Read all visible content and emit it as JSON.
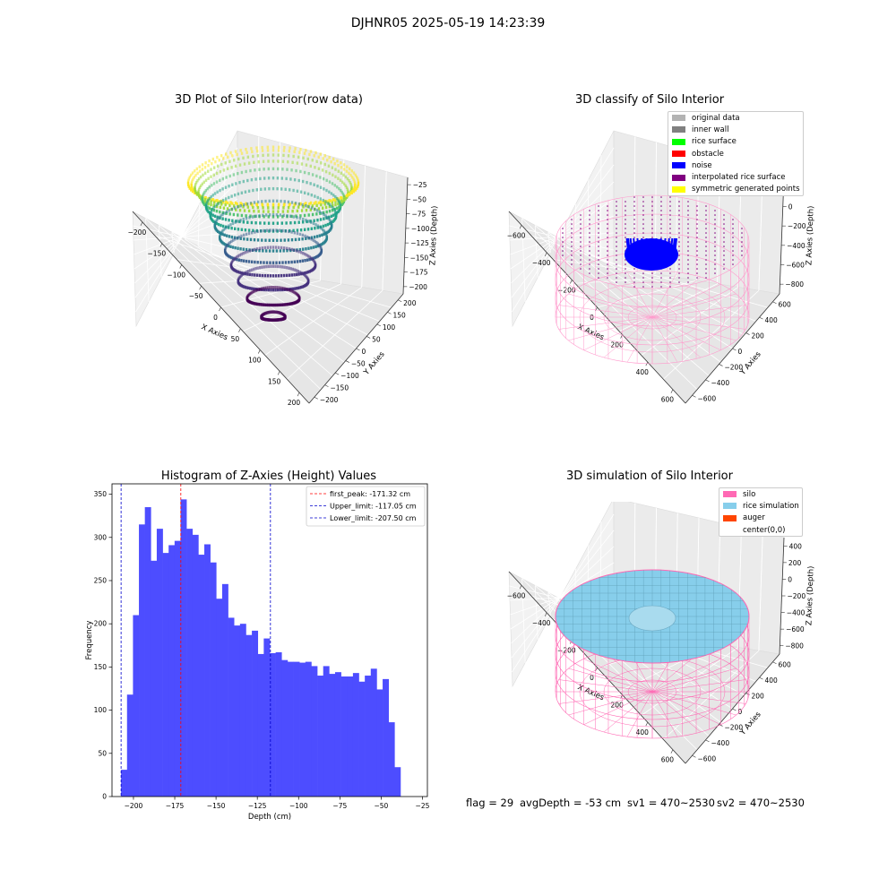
{
  "suptitle": "DJHNR05 2025-05-19 14:23:39",
  "panels": {
    "raw": {
      "title": "3D Plot of Silo Interior(row data)",
      "xlabel": "X Axies",
      "ylabel": "Y Axies",
      "zlabel": "Z Axies (Depth)",
      "xticks": [
        "−200",
        "−150",
        "−100",
        "−50",
        "0",
        "50",
        "100",
        "150",
        "200"
      ],
      "yticks": [
        "−200",
        "−150",
        "−100",
        "−50",
        "0",
        "50",
        "100",
        "150",
        "200"
      ],
      "zticks": [
        "−25",
        "−50",
        "−75",
        "−100",
        "−125",
        "−150",
        "−175",
        "−200"
      ]
    },
    "classify": {
      "title": "3D classify of Silo Interior",
      "xlabel": "X Axies",
      "ylabel": "Y Axies",
      "zlabel": "Z Axies (Depth)",
      "xticks": [
        "−600",
        "−400",
        "−200",
        "0",
        "200",
        "400",
        "600"
      ],
      "yticks": [
        "−600",
        "−400",
        "−200",
        "0",
        "200",
        "400",
        "600"
      ],
      "zticks": [
        "200",
        "0",
        "−200",
        "−400",
        "−600",
        "−800"
      ],
      "legend": [
        {
          "label": "original data",
          "color": "#b3b3b3"
        },
        {
          "label": "inner wall",
          "color": "#808080"
        },
        {
          "label": "rice surface",
          "color": "#00ff00"
        },
        {
          "label": "obstacle",
          "color": "#ff0000"
        },
        {
          "label": "noise",
          "color": "#0000ff"
        },
        {
          "label": "interpolated rice surface",
          "color": "#800080"
        },
        {
          "label": "symmetric generated points",
          "color": "#ffff00"
        }
      ]
    },
    "simulation": {
      "title": "3D simulation of Silo Interior",
      "xlabel": "X Axies",
      "ylabel": "Y Axies",
      "zlabel": "Z Axies (Depth)",
      "xticks": [
        "−600",
        "−400",
        "−200",
        "0",
        "200",
        "400",
        "600"
      ],
      "yticks": [
        "−600",
        "−400",
        "−200",
        "0",
        "200",
        "400",
        "600"
      ],
      "zticks": [
        "400",
        "200",
        "0",
        "−200",
        "−400",
        "−600",
        "−800"
      ],
      "legend": [
        {
          "label": "silo",
          "color": "#ff69b4"
        },
        {
          "label": "rice simulation",
          "color": "#87ceeb"
        },
        {
          "label": "auger",
          "color": "#ff4500"
        },
        {
          "label": "center(0,0)",
          "color": "#ffffff"
        }
      ]
    }
  },
  "chart_data": {
    "type": "bar",
    "title": "Histogram of Z-Axies (Height) Values",
    "xlabel": "Depth (cm)",
    "ylabel": "Frequency",
    "xlim": [
      -213,
      -22
    ],
    "ylim": [
      0,
      362
    ],
    "bin_start": -207.5,
    "bin_width": 3.6,
    "bar_color": "#4d4dff",
    "xticks": [
      {
        "v": -200,
        "t": "−200"
      },
      {
        "v": -175,
        "t": "−175"
      },
      {
        "v": -150,
        "t": "−150"
      },
      {
        "v": -125,
        "t": "−125"
      },
      {
        "v": -100,
        "t": "−100"
      },
      {
        "v": -75,
        "t": "−75"
      },
      {
        "v": -50,
        "t": "−50"
      },
      {
        "v": -25,
        "t": "−25"
      }
    ],
    "yticks": [
      0,
      50,
      100,
      150,
      200,
      250,
      300,
      350
    ],
    "values": [
      31,
      118,
      210,
      315,
      335,
      273,
      310,
      282,
      291,
      296,
      344,
      310,
      303,
      280,
      292,
      271,
      229,
      246,
      207,
      198,
      200,
      187,
      192,
      165,
      183,
      166,
      167,
      158,
      156,
      156,
      155,
      156,
      151,
      140,
      151,
      142,
      144,
      139,
      139,
      143,
      133,
      140,
      148,
      124,
      136,
      86,
      34
    ],
    "vlines": [
      {
        "x": -171.32,
        "color": "#ff0000",
        "label": "first_peak: -171.32 cm"
      },
      {
        "x": -117.05,
        "color": "#0000cc",
        "label": "Upper_limit: -117.05 cm"
      },
      {
        "x": -207.5,
        "color": "#0000cc",
        "label": "Lower_limit: -207.50 cm"
      }
    ],
    "legend_position": "top-right"
  },
  "footer": {
    "flag": "flag = 29",
    "avg": "avgDepth = -53 cm",
    "sv1": "sv1 = 470~2530",
    "sv2": "sv2 = 470~2530"
  }
}
